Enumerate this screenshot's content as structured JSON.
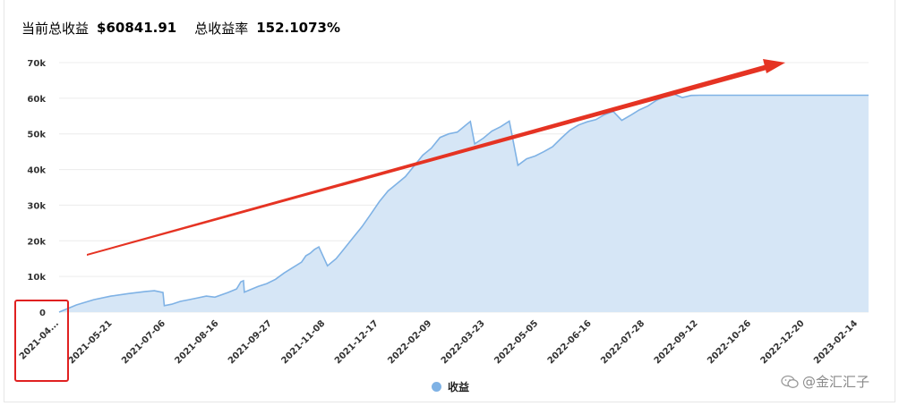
{
  "header": {
    "total_profit_label": "当前总收益",
    "total_profit_value": "$60841.91",
    "return_rate_label": "总收益率",
    "return_rate_value": "152.1073%"
  },
  "watermark": {
    "text": "@金汇汇子",
    "icon": "wechat-icon"
  },
  "annotation_colors": {
    "arrow": "#e53323",
    "highlight_box": "#e02020"
  },
  "chart_data": {
    "type": "area",
    "series_color": "#7fb2e5",
    "fill_color": "#d6e6f6",
    "ylim": [
      0,
      70000
    ],
    "yticks": [
      0,
      10000,
      20000,
      30000,
      40000,
      50000,
      60000,
      70000
    ],
    "ytick_labels": [
      "0",
      "10k",
      "20k",
      "30k",
      "40k",
      "50k",
      "60k",
      "70k"
    ],
    "xtick_labels": [
      "2021-04...",
      "2021-05-21",
      "2021-07-06",
      "2021-08-16",
      "2021-09-27",
      "2021-11-08",
      "2021-12-17",
      "2022-02-09",
      "2022-03-23",
      "2022-05-05",
      "2022-06-16",
      "2022-07-28",
      "2022-09-12",
      "2022-10-26",
      "2022-12-20",
      "2023-02-14"
    ],
    "legend": [
      {
        "name": "收益",
        "color": "#7fb2e5"
      }
    ],
    "grid": true,
    "series": [
      {
        "name": "收益",
        "x": [
          0,
          2,
          4,
          6,
          8,
          10,
          11,
          12,
          12.15,
          13,
          14,
          15,
          16,
          17,
          18,
          19.5,
          20.5,
          21,
          21.3,
          21.4,
          22,
          23,
          24,
          25,
          26,
          27,
          28,
          28.5,
          29,
          29.5,
          30,
          31,
          32,
          33,
          34,
          35,
          36,
          37,
          38,
          39,
          40,
          41,
          42,
          43,
          44,
          45,
          46,
          47,
          47.5,
          48,
          49,
          50,
          51,
          52,
          53,
          54,
          55,
          56,
          57,
          58,
          59,
          60,
          61,
          62,
          63,
          64,
          65,
          66,
          67,
          68,
          69,
          70,
          71,
          72,
          73,
          74,
          75,
          75.5,
          76,
          77,
          78,
          79,
          80,
          81,
          82,
          83,
          84,
          85,
          86,
          87,
          88,
          89,
          90,
          91,
          92,
          93,
          93.5
        ],
        "y": [
          0,
          2000,
          3500,
          4500,
          5200,
          5800,
          6000,
          5500,
          1800,
          2200,
          3000,
          3500,
          4000,
          4500,
          4200,
          5500,
          6500,
          8500,
          8800,
          5600,
          6200,
          7200,
          8000,
          9200,
          11000,
          12500,
          14000,
          15800,
          16500,
          17600,
          18300,
          13000,
          15000,
          18000,
          21000,
          24000,
          27500,
          31000,
          34000,
          36000,
          38000,
          41000,
          44000,
          46000,
          49000,
          50000,
          50500,
          52500,
          53500,
          47200,
          48800,
          50800,
          52000,
          53600,
          41200,
          43000,
          43800,
          45000,
          46400,
          48800,
          51000,
          52500,
          53400,
          54000,
          55400,
          56300,
          53800,
          55200,
          56700,
          57800,
          59400,
          60500,
          61200,
          60200,
          60800,
          60841.91,
          60841.91,
          60841.91,
          60841.91,
          60841.91,
          60841.91,
          60841.91,
          60841.91,
          60841.91,
          60841.91,
          60841.91,
          60841.91,
          60841.91,
          60841.91,
          60841.91,
          60841.91,
          60841.91,
          60841.91,
          60841.91,
          60841.91,
          60841.91,
          60841.91
        ]
      }
    ]
  }
}
